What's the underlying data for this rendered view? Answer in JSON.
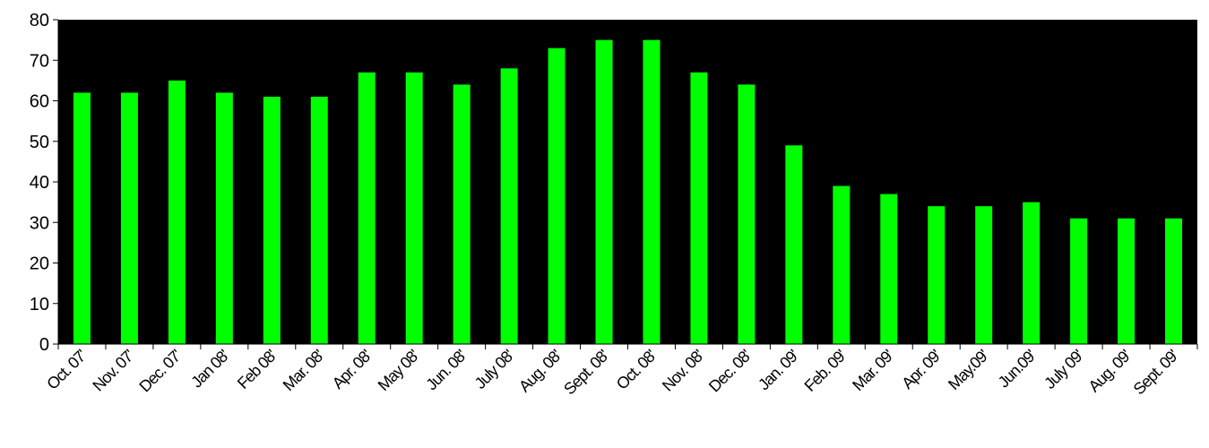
{
  "chart_data": {
    "type": "bar",
    "title": "",
    "xlabel": "",
    "ylabel": "",
    "ylim": [
      0,
      80
    ],
    "yticks": [
      0,
      10,
      20,
      30,
      40,
      50,
      60,
      70,
      80
    ],
    "grid": false,
    "legend": "none",
    "colors": {
      "bar": "#00ff00",
      "plot_background": "#000000",
      "axis": "#000000",
      "page_background": "#ffffff"
    },
    "categories": [
      "Oct. 07'",
      "Nov. 07'",
      "Dec. 07'",
      "Jan 08'",
      "Feb 08'",
      "Mar. 08'",
      "Apr. 08'",
      "May 08'",
      "Jun. 08'",
      "July 08'",
      "Aug. 08'",
      "Sept. 08'",
      "Oct. 08'",
      "Nov. 08'",
      "Dec. 08'",
      "Jan. 09'",
      "Feb. 09'",
      "Mar. 09'",
      "Apr. 09'",
      "May.09'",
      "Jun.09'",
      "July 09'",
      "Aug. 09'",
      "Sept. 09'"
    ],
    "values": [
      62,
      62,
      65,
      62,
      61,
      61,
      67,
      67,
      64,
      68,
      73,
      75,
      75,
      67,
      64,
      49,
      39,
      37,
      34,
      34,
      35,
      31,
      31,
      31
    ]
  }
}
